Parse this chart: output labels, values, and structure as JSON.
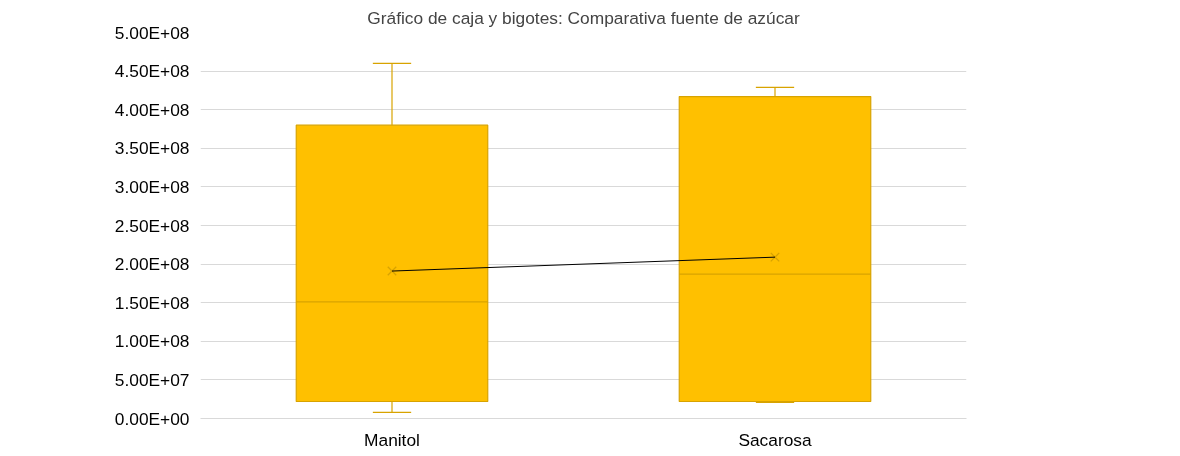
{
  "chart_data": {
    "type": "box",
    "title": "Gráfico de caja y bigotes: Comparativa fuente de azúcar",
    "categories": [
      "Manitol",
      "Sacarosa"
    ],
    "color": "#ffc000",
    "boxes": [
      {
        "low": 8000000,
        "q1": 22000000,
        "median": 151000000,
        "q3": 380000000,
        "high": 460000000,
        "mean": 191000000
      },
      {
        "low": 21000000,
        "q1": 22000000,
        "median": 187000000,
        "q3": 417000000,
        "high": 429000000,
        "mean": 209000000
      }
    ],
    "series": [
      {
        "type": "line",
        "color": "#000000",
        "values": [
          191000000,
          209000000
        ]
      }
    ],
    "ylim": [
      0,
      500000000
    ],
    "yticks": [
      {
        "value": 0,
        "label": "0.00E+00"
      },
      {
        "value": 50000000,
        "label": "5.00E+07"
      },
      {
        "value": 100000000,
        "label": "1.00E+08"
      },
      {
        "value": 150000000,
        "label": "1.50E+08"
      },
      {
        "value": 200000000,
        "label": "2.00E+08"
      },
      {
        "value": 250000000,
        "label": "2.50E+08"
      },
      {
        "value": 300000000,
        "label": "3.00E+08"
      },
      {
        "value": 350000000,
        "label": "3.50E+08"
      },
      {
        "value": 400000000,
        "label": "4.00E+08"
      },
      {
        "value": 450000000,
        "label": "4.50E+08"
      },
      {
        "value": 500000000,
        "label": "5.00E+08"
      }
    ],
    "grid": "y"
  }
}
